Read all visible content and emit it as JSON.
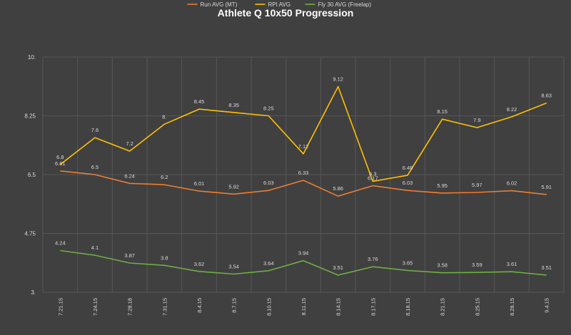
{
  "chart_data": {
    "type": "line",
    "title": "Athlete Q 10x50 Progression",
    "xlabel": "",
    "ylabel": "",
    "categories": [
      "7.21.15",
      "7.24.15",
      "7.28.18",
      "7.31.15",
      "8.4.15",
      "8.7.15",
      "8.10.15",
      "8.11.15",
      "8.14.15",
      "8.17.15",
      "8.18.15",
      "8.21.15",
      "8.25.15",
      "8.28.15",
      "9.4.15"
    ],
    "y_ticks": [
      {
        "value": 3,
        "label": "3."
      },
      {
        "value": 4.75,
        "label": "4.75"
      },
      {
        "value": 6.5,
        "label": "6.5"
      },
      {
        "value": 8.25,
        "label": "8.25"
      },
      {
        "value": 10,
        "label": "10."
      }
    ],
    "ylim": [
      3,
      10
    ],
    "grid": true,
    "legend_position": "top",
    "series": [
      {
        "name": "Run AVG (MT)",
        "color": "#ed7d31",
        "values": [
          6.61,
          6.5,
          6.24,
          6.2,
          6.01,
          5.92,
          6.03,
          6.33,
          5.86,
          6.17,
          6.03,
          5.95,
          5.97,
          6.02,
          5.91
        ],
        "labels": [
          "6.61",
          "6.5",
          "6.24",
          "6.2",
          "6.01",
          "5.92",
          "6.03",
          "6.33",
          "5.86",
          "6.17",
          "6.03",
          "5.95",
          "5.97",
          "6.02",
          "5.91"
        ]
      },
      {
        "name": "RPI AVG",
        "color": "#ffc000",
        "values": [
          6.8,
          7.6,
          7.2,
          8,
          8.45,
          8.35,
          8.25,
          7.12,
          9.12,
          6.3,
          6.48,
          8.15,
          7.9,
          8.22,
          8.63
        ],
        "labels": [
          "6.8",
          "7.6",
          "7.2",
          "8.",
          "8.45",
          "8.35",
          "8.25",
          "7.12",
          "9.12",
          "6.3",
          "6.48",
          "8.15",
          "7.9",
          "8.22",
          "8.63"
        ]
      },
      {
        "name": "Fly 30 AVG (Freelap)",
        "color": "#70ad47",
        "values": [
          4.24,
          4.1,
          3.87,
          3.8,
          3.62,
          3.54,
          3.64,
          3.94,
          3.51,
          3.76,
          3.65,
          3.58,
          3.59,
          3.61,
          3.51
        ],
        "labels": [
          "4.24",
          "4.1",
          "3.87",
          "3.8",
          "3.62",
          "3.54",
          "3.64",
          "3.94",
          "3.51",
          "3.76",
          "3.65",
          "3.58",
          "3.59",
          "3.61",
          "3.51"
        ]
      }
    ]
  }
}
